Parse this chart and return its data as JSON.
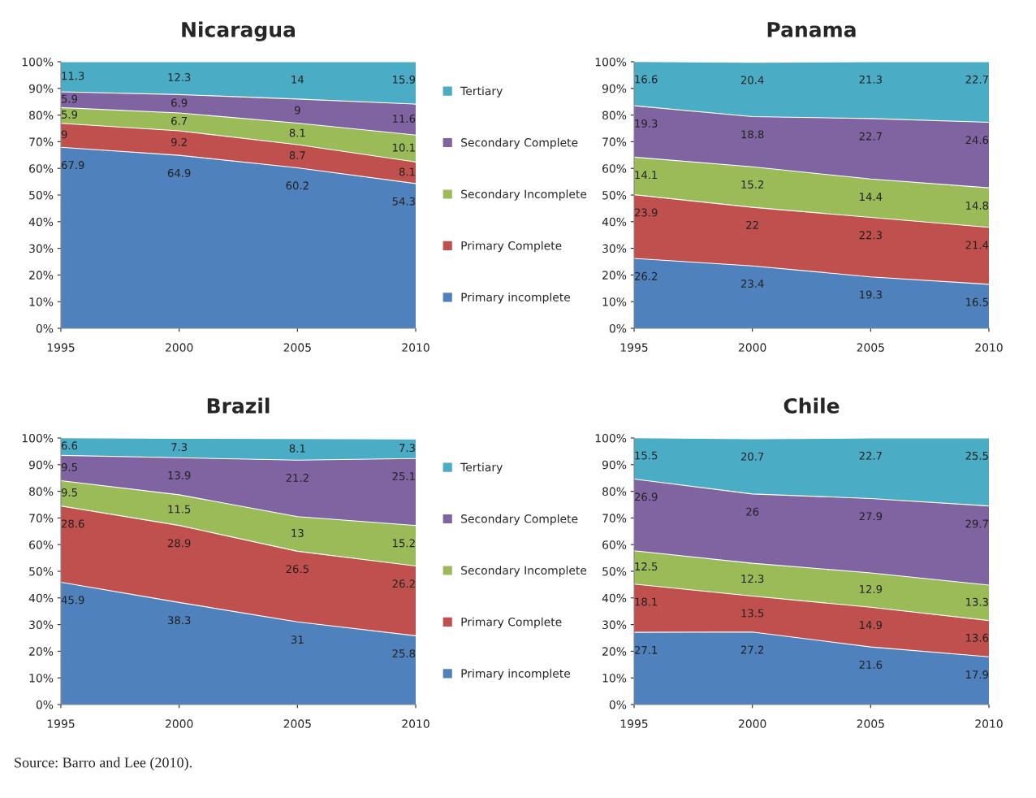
{
  "chart_data": [
    {
      "type": "area",
      "title": "Nicaragua",
      "stacked": true,
      "x": [
        1995,
        2000,
        2005,
        2010
      ],
      "xlim": [
        1995,
        2010
      ],
      "xticks": [
        1995,
        2000,
        2005,
        2010
      ],
      "ylim": [
        0,
        100
      ],
      "yticks": [
        {
          "value": 0,
          "label": "0%"
        },
        {
          "value": 10,
          "label": "10%"
        },
        {
          "value": 20,
          "label": "20%"
        },
        {
          "value": 30,
          "label": "30%"
        },
        {
          "value": 40,
          "label": "40%"
        },
        {
          "value": 50,
          "label": "50%"
        },
        {
          "value": 60,
          "label": "60%"
        },
        {
          "value": 70,
          "label": "70%"
        },
        {
          "value": 80,
          "label": "80%"
        },
        {
          "value": 90,
          "label": "90%"
        },
        {
          "value": 100,
          "label": "100%"
        }
      ],
      "data_labels": true,
      "legend": "right",
      "grid": false,
      "series": [
        {
          "name": "Primary incomplete",
          "color": "#4f81bd",
          "values": [
            67.9,
            64.9,
            60.2,
            54.3
          ]
        },
        {
          "name": "Primary Complete",
          "color": "#c0504d",
          "values": [
            9,
            9.2,
            8.7,
            8.1
          ]
        },
        {
          "name": "Secondary Incomplete",
          "color": "#9bbb59",
          "values": [
            5.9,
            6.7,
            8.1,
            10.1
          ]
        },
        {
          "name": "Secondary Complete",
          "color": "#8064a2",
          "values": [
            5.9,
            6.9,
            9,
            11.6
          ]
        },
        {
          "name": "Tertiary",
          "color": "#4bacc6",
          "values": [
            11.3,
            12.3,
            14,
            15.9
          ]
        }
      ]
    },
    {
      "type": "area",
      "title": "Panama",
      "stacked": true,
      "x": [
        1995,
        2000,
        2005,
        2010
      ],
      "xlim": [
        1995,
        2010
      ],
      "xticks": [
        1995,
        2000,
        2005,
        2010
      ],
      "ylim": [
        0,
        100
      ],
      "yticks": [
        {
          "value": 0,
          "label": "0%"
        },
        {
          "value": 10,
          "label": "10%"
        },
        {
          "value": 20,
          "label": "20%"
        },
        {
          "value": 30,
          "label": "30%"
        },
        {
          "value": 40,
          "label": "40%"
        },
        {
          "value": 50,
          "label": "50%"
        },
        {
          "value": 60,
          "label": "60%"
        },
        {
          "value": 70,
          "label": "70%"
        },
        {
          "value": 80,
          "label": "80%"
        },
        {
          "value": 90,
          "label": "90%"
        },
        {
          "value": 100,
          "label": "100%"
        }
      ],
      "data_labels": true,
      "grid": false,
      "series": [
        {
          "color": "#4f81bd",
          "values": [
            26.2,
            23.4,
            19.3,
            16.5
          ]
        },
        {
          "color": "#c0504d",
          "values": [
            23.9,
            22,
            22.3,
            21.4
          ]
        },
        {
          "color": "#9bbb59",
          "values": [
            14.1,
            15.2,
            14.4,
            14.8
          ]
        },
        {
          "color": "#8064a2",
          "values": [
            19.3,
            18.8,
            22.7,
            24.6
          ]
        },
        {
          "color": "#4bacc6",
          "values": [
            16.6,
            20.4,
            21.3,
            22.7
          ]
        }
      ]
    },
    {
      "type": "area",
      "title": "Brazil",
      "stacked": true,
      "x": [
        1995,
        2000,
        2005,
        2010
      ],
      "xlim": [
        1995,
        2010
      ],
      "xticks": [
        1995,
        2000,
        2005,
        2010
      ],
      "ylim": [
        0,
        100
      ],
      "yticks": [
        {
          "value": 0,
          "label": "0%"
        },
        {
          "value": 10,
          "label": "10%"
        },
        {
          "value": 20,
          "label": "20%"
        },
        {
          "value": 30,
          "label": "30%"
        },
        {
          "value": 40,
          "label": "40%"
        },
        {
          "value": 50,
          "label": "50%"
        },
        {
          "value": 60,
          "label": "60%"
        },
        {
          "value": 70,
          "label": "70%"
        },
        {
          "value": 80,
          "label": "80%"
        },
        {
          "value": 90,
          "label": "90%"
        },
        {
          "value": 100,
          "label": "100%"
        }
      ],
      "data_labels": true,
      "legend": "right",
      "grid": false,
      "series": [
        {
          "name": "Primary incomplete",
          "color": "#4f81bd",
          "values": [
            45.9,
            38.3,
            31,
            25.8
          ]
        },
        {
          "name": "Primary Complete",
          "color": "#c0504d",
          "values": [
            28.6,
            28.9,
            26.5,
            26.2
          ]
        },
        {
          "name": "Secondary Incomplete",
          "color": "#9bbb59",
          "values": [
            9.5,
            11.5,
            13,
            15.2
          ]
        },
        {
          "name": "Secondary Complete",
          "color": "#8064a2",
          "values": [
            9.5,
            13.9,
            21.2,
            25.1
          ]
        },
        {
          "name": "Tertiary",
          "color": "#4bacc6",
          "values": [
            6.6,
            7.3,
            8.1,
            7.3
          ]
        }
      ]
    },
    {
      "type": "area",
      "title": "Chile",
      "stacked": true,
      "x": [
        1995,
        2000,
        2005,
        2010
      ],
      "xlim": [
        1995,
        2010
      ],
      "xticks": [
        1995,
        2000,
        2005,
        2010
      ],
      "ylim": [
        0,
        100
      ],
      "yticks": [
        {
          "value": 0,
          "label": "0%"
        },
        {
          "value": 10,
          "label": "10%"
        },
        {
          "value": 20,
          "label": "20%"
        },
        {
          "value": 30,
          "label": "30%"
        },
        {
          "value": 40,
          "label": "40%"
        },
        {
          "value": 50,
          "label": "50%"
        },
        {
          "value": 60,
          "label": "60%"
        },
        {
          "value": 70,
          "label": "70%"
        },
        {
          "value": 80,
          "label": "80%"
        },
        {
          "value": 90,
          "label": "90%"
        },
        {
          "value": 100,
          "label": "100%"
        }
      ],
      "data_labels": true,
      "grid": false,
      "annotations": [
        "Source: Barro and Lee (2010)."
      ],
      "series": [
        {
          "color": "#4f81bd",
          "values": [
            27.1,
            27.2,
            21.6,
            17.9
          ]
        },
        {
          "color": "#c0504d",
          "values": [
            18.1,
            13.5,
            14.9,
            13.6
          ]
        },
        {
          "color": "#9bbb59",
          "values": [
            12.5,
            12.3,
            12.9,
            13.3
          ]
        },
        {
          "color": "#8064a2",
          "values": [
            26.9,
            26,
            27.9,
            29.7
          ]
        },
        {
          "color": "#4bacc6",
          "values": [
            15.5,
            20.7,
            22.7,
            25.5
          ]
        }
      ]
    }
  ]
}
